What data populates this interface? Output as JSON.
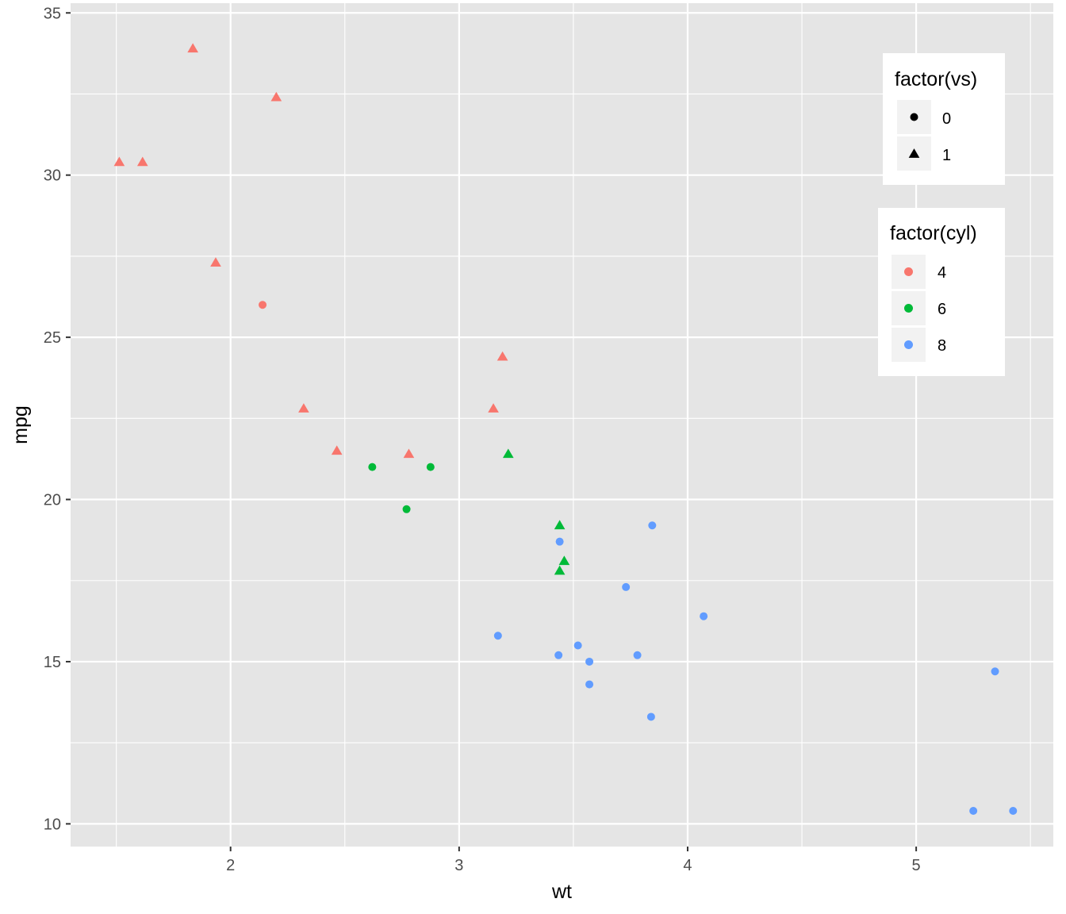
{
  "chart_data": {
    "type": "scatter",
    "title": "",
    "xlabel": "wt",
    "ylabel": "mpg",
    "xlim": [
      1.3,
      5.6
    ],
    "ylim": [
      9.3,
      35.3
    ],
    "x_ticks": [
      2,
      3,
      4,
      5
    ],
    "x_tick_labels": [
      "2",
      "3",
      "4",
      "5"
    ],
    "y_ticks": [
      10,
      15,
      20,
      25,
      30,
      35
    ],
    "y_tick_labels": [
      "10",
      "15",
      "20",
      "25",
      "30",
      "35"
    ],
    "grid": true,
    "background_color": "#e5e5e5",
    "grid_color": "#ffffff",
    "legends": [
      {
        "title": "factor(vs)",
        "placement": "top-right",
        "mapping": "shape",
        "entries": [
          {
            "label": "0",
            "shape": "circle"
          },
          {
            "label": "1",
            "shape": "triangle"
          }
        ]
      },
      {
        "title": "factor(cyl)",
        "placement": "right",
        "mapping": "color",
        "entries": [
          {
            "label": "4",
            "color": "#F8766D"
          },
          {
            "label": "6",
            "color": "#00BA38"
          },
          {
            "label": "8",
            "color": "#619CFF"
          }
        ]
      }
    ],
    "points": [
      {
        "x": 2.62,
        "y": 21.0,
        "cyl": "6",
        "vs": "0"
      },
      {
        "x": 2.875,
        "y": 21.0,
        "cyl": "6",
        "vs": "0"
      },
      {
        "x": 2.32,
        "y": 22.8,
        "cyl": "4",
        "vs": "1"
      },
      {
        "x": 3.215,
        "y": 21.4,
        "cyl": "6",
        "vs": "1"
      },
      {
        "x": 3.44,
        "y": 18.7,
        "cyl": "8",
        "vs": "0"
      },
      {
        "x": 3.46,
        "y": 18.1,
        "cyl": "6",
        "vs": "1"
      },
      {
        "x": 3.57,
        "y": 14.3,
        "cyl": "8",
        "vs": "0"
      },
      {
        "x": 3.19,
        "y": 24.4,
        "cyl": "4",
        "vs": "1"
      },
      {
        "x": 3.15,
        "y": 22.8,
        "cyl": "4",
        "vs": "1"
      },
      {
        "x": 3.44,
        "y": 19.2,
        "cyl": "6",
        "vs": "1"
      },
      {
        "x": 3.44,
        "y": 17.8,
        "cyl": "6",
        "vs": "1"
      },
      {
        "x": 4.07,
        "y": 16.4,
        "cyl": "8",
        "vs": "0"
      },
      {
        "x": 3.73,
        "y": 17.3,
        "cyl": "8",
        "vs": "0"
      },
      {
        "x": 3.78,
        "y": 15.2,
        "cyl": "8",
        "vs": "0"
      },
      {
        "x": 5.25,
        "y": 10.4,
        "cyl": "8",
        "vs": "0"
      },
      {
        "x": 5.424,
        "y": 10.4,
        "cyl": "8",
        "vs": "0"
      },
      {
        "x": 5.345,
        "y": 14.7,
        "cyl": "8",
        "vs": "0"
      },
      {
        "x": 2.2,
        "y": 32.4,
        "cyl": "4",
        "vs": "1"
      },
      {
        "x": 1.615,
        "y": 30.4,
        "cyl": "4",
        "vs": "1"
      },
      {
        "x": 1.835,
        "y": 33.9,
        "cyl": "4",
        "vs": "1"
      },
      {
        "x": 2.465,
        "y": 21.5,
        "cyl": "4",
        "vs": "1"
      },
      {
        "x": 3.52,
        "y": 15.5,
        "cyl": "8",
        "vs": "0"
      },
      {
        "x": 3.435,
        "y": 15.2,
        "cyl": "8",
        "vs": "0"
      },
      {
        "x": 3.84,
        "y": 13.3,
        "cyl": "8",
        "vs": "0"
      },
      {
        "x": 3.845,
        "y": 19.2,
        "cyl": "8",
        "vs": "0"
      },
      {
        "x": 1.935,
        "y": 27.3,
        "cyl": "4",
        "vs": "1"
      },
      {
        "x": 2.14,
        "y": 26.0,
        "cyl": "4",
        "vs": "0"
      },
      {
        "x": 1.513,
        "y": 30.4,
        "cyl": "4",
        "vs": "1"
      },
      {
        "x": 3.17,
        "y": 15.8,
        "cyl": "8",
        "vs": "0"
      },
      {
        "x": 2.77,
        "y": 19.7,
        "cyl": "6",
        "vs": "0"
      },
      {
        "x": 3.57,
        "y": 15.0,
        "cyl": "8",
        "vs": "0"
      },
      {
        "x": 2.78,
        "y": 21.4,
        "cyl": "4",
        "vs": "1"
      }
    ]
  }
}
